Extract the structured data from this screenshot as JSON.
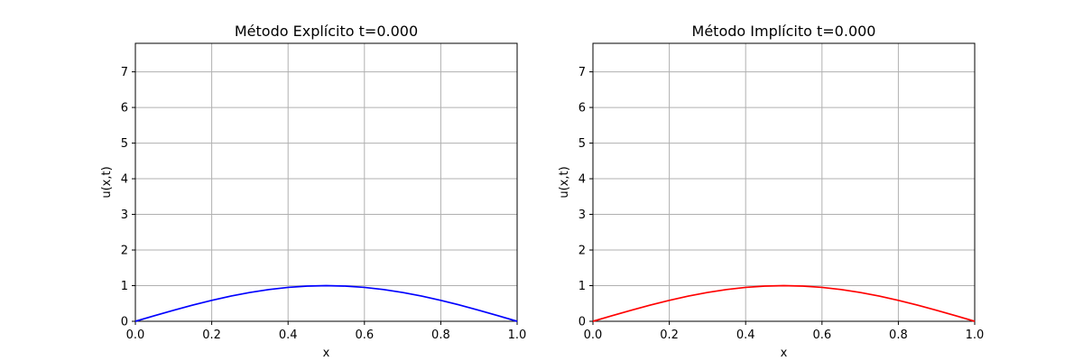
{
  "chart_data": [
    {
      "type": "line",
      "title": "Método Explícito t=0.000",
      "xlabel": "x",
      "ylabel": "u(x,t)",
      "xlim": [
        0,
        1
      ],
      "ylim": [
        0,
        7.8
      ],
      "xticks": [
        "0.0",
        "0.2",
        "0.4",
        "0.6",
        "0.8",
        "1.0"
      ],
      "yticks": [
        "0",
        "1",
        "2",
        "3",
        "4",
        "5",
        "6",
        "7"
      ],
      "grid": true,
      "series": [
        {
          "color": "#0000ff",
          "x": [
            0,
            0.05,
            0.1,
            0.15,
            0.2,
            0.25,
            0.3,
            0.35,
            0.4,
            0.45,
            0.5,
            0.55,
            0.6,
            0.65,
            0.7,
            0.75,
            0.8,
            0.85,
            0.9,
            0.95,
            1
          ],
          "y": [
            0,
            0.156,
            0.309,
            0.454,
            0.588,
            0.707,
            0.809,
            0.891,
            0.951,
            0.988,
            1,
            0.988,
            0.951,
            0.891,
            0.809,
            0.707,
            0.588,
            0.454,
            0.309,
            0.156,
            0
          ]
        }
      ]
    },
    {
      "type": "line",
      "title": "Método Implícito t=0.000",
      "xlabel": "x",
      "ylabel": "u(x,t)",
      "xlim": [
        0,
        1
      ],
      "ylim": [
        0,
        7.8
      ],
      "xticks": [
        "0.0",
        "0.2",
        "0.4",
        "0.6",
        "0.8",
        "1.0"
      ],
      "yticks": [
        "0",
        "1",
        "2",
        "3",
        "4",
        "5",
        "6",
        "7"
      ],
      "grid": true,
      "series": [
        {
          "color": "#ff0000",
          "x": [
            0,
            0.05,
            0.1,
            0.15,
            0.2,
            0.25,
            0.3,
            0.35,
            0.4,
            0.45,
            0.5,
            0.55,
            0.6,
            0.65,
            0.7,
            0.75,
            0.8,
            0.85,
            0.9,
            0.95,
            1
          ],
          "y": [
            0,
            0.156,
            0.309,
            0.454,
            0.588,
            0.707,
            0.809,
            0.891,
            0.951,
            0.988,
            1,
            0.988,
            0.951,
            0.891,
            0.809,
            0.707,
            0.588,
            0.454,
            0.309,
            0.156,
            0
          ]
        }
      ]
    }
  ]
}
